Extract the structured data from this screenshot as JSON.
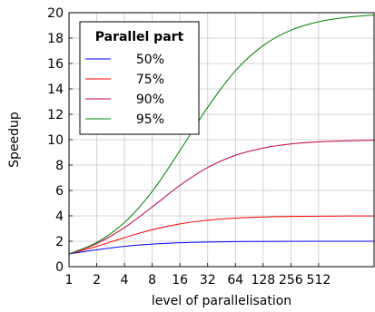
{
  "chart_data": {
    "type": "line",
    "title": "",
    "xlabel": "level of parallelisation",
    "ylabel": "Speedup",
    "x_scale": "log2",
    "xlim": [
      1,
      2048
    ],
    "ylim": [
      0,
      20
    ],
    "x_ticks": [
      1,
      2,
      4,
      8,
      16,
      32,
      64,
      128,
      256,
      512
    ],
    "x_tick_labels": [
      "1",
      "2",
      "4",
      "8",
      "16",
      "32",
      "64",
      "128",
      "256",
      "512"
    ],
    "y_ticks": [
      0,
      2,
      4,
      6,
      8,
      10,
      12,
      14,
      16,
      18,
      20
    ],
    "y_tick_labels": [
      "0",
      "2",
      "4",
      "6",
      "8",
      "10",
      "12",
      "14",
      "16",
      "18",
      "20"
    ],
    "grid": true,
    "legend": {
      "title": "Parallel part",
      "position": "top-left"
    },
    "x": [
      1,
      2,
      4,
      8,
      16,
      32,
      64,
      128,
      256,
      512,
      1024,
      2048
    ],
    "series": [
      {
        "name": "50%",
        "color": "#0000ff",
        "values": [
          1.0,
          1.333,
          1.6,
          1.778,
          1.882,
          1.939,
          1.969,
          1.984,
          1.992,
          1.996,
          1.998,
          1.999
        ]
      },
      {
        "name": "75%",
        "color": "#ff0000",
        "values": [
          1.0,
          1.6,
          2.286,
          2.909,
          3.368,
          3.657,
          3.821,
          3.91,
          3.954,
          3.977,
          3.988,
          3.994
        ]
      },
      {
        "name": "90%",
        "color": "#bf0040",
        "values": [
          1.0,
          1.818,
          3.077,
          4.706,
          6.4,
          7.805,
          8.767,
          9.343,
          9.66,
          9.827,
          9.913,
          9.956
        ]
      },
      {
        "name": "95%",
        "color": "#008000",
        "values": [
          1.0,
          1.905,
          3.478,
          5.926,
          9.143,
          12.549,
          15.422,
          17.414,
          18.618,
          19.284,
          19.635,
          19.816
        ]
      }
    ]
  }
}
